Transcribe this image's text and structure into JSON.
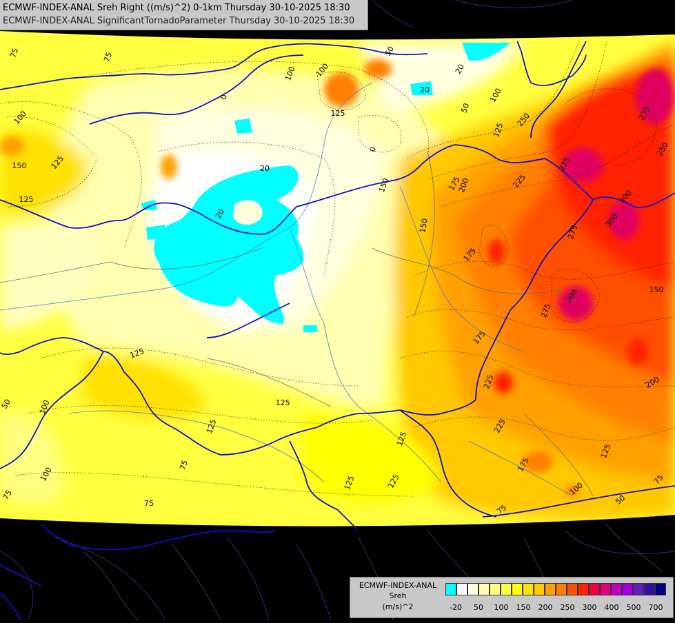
{
  "titles": {
    "line1": "ECMWF-INDEX-ANAL Sreh Right ((m/s)^2) 0-1km Thursday 30-10-2025 18:30",
    "line2": "ECMWF-INDEX-ANAL SignificantTornadoParameter Thursday 30-10-2025 18:30"
  },
  "legend": {
    "title_line1": "ECMWF-INDEX-ANAL",
    "title_line2": "Sreh",
    "title_line3": "(m/s)^2",
    "colors": [
      "#00ffff",
      "#ffffff",
      "#ffffe0",
      "#ffffb0",
      "#ffff80",
      "#ffff40",
      "#ffff00",
      "#ffe000",
      "#ffc800",
      "#ffa000",
      "#ff8000",
      "#ff5000",
      "#ff2000",
      "#f00040",
      "#e00080",
      "#c000c0",
      "#a000e0",
      "#6020c0",
      "#3010a0",
      "#000080"
    ],
    "ticks": [
      "-20",
      "50",
      "100",
      "150",
      "200",
      "250",
      "300",
      "400",
      "500",
      "700"
    ]
  },
  "contour_labels": [
    {
      "text": "75"
    },
    {
      "text": "75"
    },
    {
      "text": "100"
    },
    {
      "text": "100"
    },
    {
      "text": "100"
    },
    {
      "text": "150"
    },
    {
      "text": "125"
    },
    {
      "text": "125"
    },
    {
      "text": "0"
    },
    {
      "text": "125"
    },
    {
      "text": "50"
    },
    {
      "text": "20"
    },
    {
      "text": "20"
    },
    {
      "text": "50"
    },
    {
      "text": "0"
    },
    {
      "text": "20"
    },
    {
      "text": "20"
    },
    {
      "text": "175"
    },
    {
      "text": "200"
    },
    {
      "text": "275"
    },
    {
      "text": "300"
    },
    {
      "text": "250"
    },
    {
      "text": "100"
    },
    {
      "text": "125"
    },
    {
      "text": "250"
    },
    {
      "text": "225"
    },
    {
      "text": "275"
    },
    {
      "text": "150"
    },
    {
      "text": "150"
    },
    {
      "text": "175"
    },
    {
      "text": "225"
    },
    {
      "text": "300"
    },
    {
      "text": "275"
    },
    {
      "text": "300"
    },
    {
      "text": "275"
    },
    {
      "text": "150"
    },
    {
      "text": "175"
    },
    {
      "text": "225"
    },
    {
      "text": "200"
    },
    {
      "text": "125"
    },
    {
      "text": "125"
    },
    {
      "text": "125"
    },
    {
      "text": "50"
    },
    {
      "text": "100"
    },
    {
      "text": "100"
    },
    {
      "text": "75"
    },
    {
      "text": "75"
    },
    {
      "text": "125"
    },
    {
      "text": "125"
    },
    {
      "text": "125"
    },
    {
      "text": "175"
    },
    {
      "text": "125"
    },
    {
      "text": "75"
    },
    {
      "text": "50"
    },
    {
      "text": "75"
    },
    {
      "text": "100"
    },
    {
      "text": "75"
    }
  ]
}
